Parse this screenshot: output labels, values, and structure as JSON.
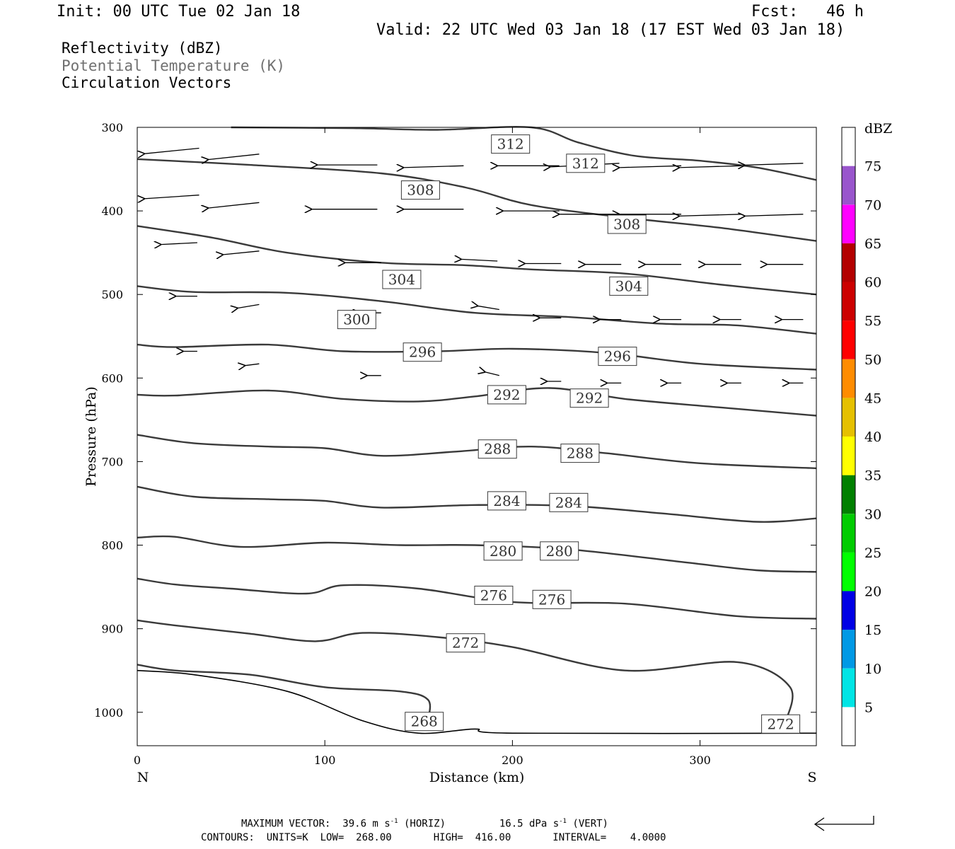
{
  "header": {
    "init": "Init: 00 UTC Tue 02 Jan 18",
    "fcst": "Fcst:   46 h",
    "valid": "Valid: 22 UTC Wed 03 Jan 18 (17 EST Wed 03 Jan 18)"
  },
  "legend_fields": [
    {
      "label": "Reflectivity (dBZ)",
      "color": "#000000"
    },
    {
      "label": "Potential Temperature (K)",
      "color": "#707070"
    },
    {
      "label": "Circulation Vectors",
      "color": "#000000"
    }
  ],
  "footer": {
    "vector_line1_prefix": "MAXIMUM VECTOR:  39.6 m s",
    "vector_line1_sup1": "-1",
    "vector_line1_mid": " (HORIZ)         16.5 dPa s",
    "vector_line1_sup2": "-1",
    "vector_line1_suffix": " (VERT)",
    "contours_line": "CONTOURS:  UNITS=K  LOW=  268.00       HIGH=  416.00       INTERVAL=    4.0000"
  },
  "chart_data": {
    "type": "cross-section",
    "xlabel": "Distance (km)",
    "ylabel": "Pressure (hPa)",
    "x_ticks": [
      0,
      100,
      200,
      300
    ],
    "y_ticks": [
      300,
      400,
      500,
      600,
      700,
      800,
      900,
      1000
    ],
    "xlim": [
      0,
      362
    ],
    "ylim": [
      300,
      1040
    ],
    "x_end_labels": {
      "left": "N",
      "right": "S"
    },
    "colorbar": {
      "title": "dBZ",
      "ticks": [
        5,
        10,
        15,
        20,
        25,
        30,
        35,
        40,
        45,
        50,
        55,
        60,
        65,
        70,
        75
      ],
      "bins": [
        {
          "from": 0,
          "to": 5,
          "color": "#ffffff"
        },
        {
          "from": 5,
          "to": 10,
          "color": "#00e5e5"
        },
        {
          "from": 10,
          "to": 15,
          "color": "#0099e5"
        },
        {
          "from": 15,
          "to": 20,
          "color": "#0000e5"
        },
        {
          "from": 20,
          "to": 25,
          "color": "#00ff00"
        },
        {
          "from": 25,
          "to": 30,
          "color": "#00cc00"
        },
        {
          "from": 30,
          "to": 35,
          "color": "#008000"
        },
        {
          "from": 35,
          "to": 40,
          "color": "#ffff00"
        },
        {
          "from": 40,
          "to": 45,
          "color": "#e5c000"
        },
        {
          "from": 45,
          "to": 50,
          "color": "#ff8c00"
        },
        {
          "from": 50,
          "to": 55,
          "color": "#ff0000"
        },
        {
          "from": 55,
          "to": 60,
          "color": "#cc0000"
        },
        {
          "from": 60,
          "to": 65,
          "color": "#b30000"
        },
        {
          "from": 65,
          "to": 70,
          "color": "#ff00ff"
        },
        {
          "from": 70,
          "to": 75,
          "color": "#9955cc"
        },
        {
          "from": 75,
          "to": 80,
          "color": "#ffffff"
        }
      ]
    },
    "contours": [
      {
        "value": 312,
        "points": [
          [
            50,
            300
          ],
          [
            115,
            301
          ],
          [
            160,
            303
          ],
          [
            210,
            300
          ],
          [
            235,
            318
          ],
          [
            265,
            334
          ],
          [
            300,
            340
          ],
          [
            330,
            348
          ],
          [
            362,
            363
          ]
        ]
      },
      {
        "value": 308,
        "points": [
          [
            0,
            338
          ],
          [
            60,
            345
          ],
          [
            130,
            355
          ],
          [
            175,
            372
          ],
          [
            210,
            393
          ],
          [
            260,
            408
          ],
          [
            310,
            420
          ],
          [
            362,
            436
          ]
        ]
      },
      {
        "value": 304,
        "points": [
          [
            0,
            418
          ],
          [
            40,
            432
          ],
          [
            80,
            450
          ],
          [
            130,
            462
          ],
          [
            175,
            465
          ],
          [
            210,
            470
          ],
          [
            260,
            475
          ],
          [
            310,
            488
          ],
          [
            362,
            500
          ]
        ]
      },
      {
        "value": 300,
        "points": [
          [
            0,
            490
          ],
          [
            30,
            497
          ],
          [
            80,
            498
          ],
          [
            130,
            508
          ],
          [
            180,
            522
          ],
          [
            230,
            527
          ],
          [
            280,
            535
          ],
          [
            320,
            537
          ],
          [
            362,
            547
          ]
        ]
      },
      {
        "value": 296,
        "points": [
          [
            0,
            560
          ],
          [
            20,
            563
          ],
          [
            70,
            560
          ],
          [
            110,
            568
          ],
          [
            160,
            568
          ],
          [
            200,
            565
          ],
          [
            250,
            570
          ],
          [
            300,
            583
          ],
          [
            362,
            590
          ]
        ]
      },
      {
        "value": 292,
        "points": [
          [
            0,
            620
          ],
          [
            20,
            621
          ],
          [
            70,
            615
          ],
          [
            110,
            625
          ],
          [
            150,
            628
          ],
          [
            180,
            622
          ],
          [
            220,
            612
          ],
          [
            260,
            625
          ],
          [
            310,
            635
          ],
          [
            362,
            645
          ]
        ]
      },
      {
        "value": 288,
        "points": [
          [
            0,
            668
          ],
          [
            30,
            678
          ],
          [
            70,
            682
          ],
          [
            100,
            684
          ],
          [
            130,
            693
          ],
          [
            170,
            688
          ],
          [
            210,
            682
          ],
          [
            250,
            690
          ],
          [
            300,
            702
          ],
          [
            362,
            708
          ]
        ]
      },
      {
        "value": 284,
        "points": [
          [
            0,
            730
          ],
          [
            30,
            742
          ],
          [
            70,
            745
          ],
          [
            100,
            747
          ],
          [
            130,
            755
          ],
          [
            180,
            752
          ],
          [
            230,
            753
          ],
          [
            280,
            762
          ],
          [
            330,
            772
          ],
          [
            362,
            768
          ]
        ]
      },
      {
        "value": 280,
        "points": [
          [
            0,
            791
          ],
          [
            20,
            790
          ],
          [
            55,
            802
          ],
          [
            100,
            797
          ],
          [
            140,
            800
          ],
          [
            180,
            800
          ],
          [
            230,
            805
          ],
          [
            290,
            820
          ],
          [
            330,
            830
          ],
          [
            362,
            832
          ]
        ]
      },
      {
        "value": 276,
        "points": [
          [
            0,
            840
          ],
          [
            20,
            847
          ],
          [
            50,
            852
          ],
          [
            90,
            858
          ],
          [
            110,
            848
          ],
          [
            150,
            852
          ],
          [
            200,
            868
          ],
          [
            260,
            870
          ],
          [
            320,
            885
          ],
          [
            362,
            888
          ]
        ]
      },
      {
        "value": 272,
        "points": [
          [
            0,
            890
          ],
          [
            20,
            896
          ],
          [
            60,
            906
          ],
          [
            95,
            915
          ],
          [
            120,
            905
          ],
          [
            160,
            910
          ],
          [
            200,
            922
          ],
          [
            260,
            950
          ],
          [
            320,
            940
          ],
          [
            348,
            970
          ],
          [
            345,
            1015
          ]
        ]
      },
      {
        "value": 268,
        "points": [
          [
            0,
            943
          ],
          [
            20,
            950
          ],
          [
            60,
            955
          ],
          [
            100,
            970
          ],
          [
            140,
            975
          ],
          [
            155,
            985
          ],
          [
            155,
            1010
          ]
        ]
      }
    ],
    "contour_labels": [
      {
        "value": "312",
        "x": 199,
        "p": 320
      },
      {
        "value": "312",
        "x": 239,
        "p": 343
      },
      {
        "value": "308",
        "x": 151,
        "p": 375
      },
      {
        "value": "308",
        "x": 261,
        "p": 416
      },
      {
        "value": "304",
        "x": 141,
        "p": 482
      },
      {
        "value": "304",
        "x": 262,
        "p": 490
      },
      {
        "value": "300",
        "x": 117,
        "p": 530
      },
      {
        "value": "296",
        "x": 152,
        "p": 569
      },
      {
        "value": "296",
        "x": 256,
        "p": 574
      },
      {
        "value": "292",
        "x": 197,
        "p": 620
      },
      {
        "value": "292",
        "x": 241,
        "p": 624
      },
      {
        "value": "288",
        "x": 192,
        "p": 685
      },
      {
        "value": "288",
        "x": 236,
        "p": 690
      },
      {
        "value": "284",
        "x": 197,
        "p": 747
      },
      {
        "value": "284",
        "x": 230,
        "p": 749
      },
      {
        "value": "280",
        "x": 195,
        "p": 807
      },
      {
        "value": "280",
        "x": 225,
        "p": 807
      },
      {
        "value": "276",
        "x": 190,
        "p": 860
      },
      {
        "value": "276",
        "x": 221,
        "p": 865
      },
      {
        "value": "272",
        "x": 175,
        "p": 917
      },
      {
        "value": "268",
        "x": 153,
        "p": 1011
      },
      {
        "value": "272",
        "x": 343,
        "p": 1014
      }
    ],
    "surface": [
      [
        0,
        950
      ],
      [
        30,
        955
      ],
      [
        80,
        975
      ],
      [
        120,
        1010
      ],
      [
        150,
        1025
      ],
      [
        180,
        1020
      ],
      [
        200,
        1025
      ],
      [
        362,
        1025
      ]
    ],
    "vectors": [
      {
        "x": 33,
        "p": 325,
        "u": -30,
        "v": 3
      },
      {
        "x": 65,
        "p": 332,
        "u": -28,
        "v": 3
      },
      {
        "x": 128,
        "p": 345,
        "u": -33,
        "v": 0
      },
      {
        "x": 174,
        "p": 346,
        "u": -33,
        "v": 1
      },
      {
        "x": 225,
        "p": 346,
        "u": -34,
        "v": 0
      },
      {
        "x": 257,
        "p": 343,
        "u": -38,
        "v": 2
      },
      {
        "x": 290,
        "p": 346,
        "u": -34,
        "v": 1
      },
      {
        "x": 322,
        "p": 346,
        "u": -34,
        "v": 1
      },
      {
        "x": 355,
        "p": 343,
        "u": -32,
        "v": 1
      },
      {
        "x": 33,
        "p": 381,
        "u": -30,
        "v": 2
      },
      {
        "x": 65,
        "p": 390,
        "u": -28,
        "v": 3
      },
      {
        "x": 128,
        "p": 398,
        "u": -36,
        "v": 0
      },
      {
        "x": 174,
        "p": 398,
        "u": -33,
        "v": 0
      },
      {
        "x": 225,
        "p": 400,
        "u": -31,
        "v": 0
      },
      {
        "x": 257,
        "p": 404,
        "u": -33,
        "v": 0
      },
      {
        "x": 290,
        "p": 404,
        "u": -34,
        "v": 0
      },
      {
        "x": 322,
        "p": 404,
        "u": -34,
        "v": 1
      },
      {
        "x": 355,
        "p": 404,
        "u": -32,
        "v": 1
      },
      {
        "x": 32,
        "p": 438,
        "u": -20,
        "v": 1
      },
      {
        "x": 65,
        "p": 448,
        "u": -20,
        "v": 2
      },
      {
        "x": 130,
        "p": 462,
        "u": -20,
        "v": 0
      },
      {
        "x": 192,
        "p": 460,
        "u": -20,
        "v": -1
      },
      {
        "x": 226,
        "p": 463,
        "u": -20,
        "v": 0
      },
      {
        "x": 258,
        "p": 464,
        "u": -20,
        "v": 0
      },
      {
        "x": 290,
        "p": 464,
        "u": -20,
        "v": 0
      },
      {
        "x": 322,
        "p": 464,
        "u": -20,
        "v": 0
      },
      {
        "x": 355,
        "p": 464,
        "u": -20,
        "v": 0
      },
      {
        "x": 32,
        "p": 502,
        "u": -12,
        "v": 0
      },
      {
        "x": 65,
        "p": 512,
        "u": -12,
        "v": 2
      },
      {
        "x": 130,
        "p": 522,
        "u": -12,
        "v": 0
      },
      {
        "x": 193,
        "p": 518,
        "u": -12,
        "v": -2
      },
      {
        "x": 226,
        "p": 528,
        "u": -12,
        "v": 0
      },
      {
        "x": 258,
        "p": 530,
        "u": -12,
        "v": 0
      },
      {
        "x": 290,
        "p": 530,
        "u": -12,
        "v": 0
      },
      {
        "x": 322,
        "p": 530,
        "u": -12,
        "v": 0
      },
      {
        "x": 355,
        "p": 530,
        "u": -12,
        "v": 0
      },
      {
        "x": 32,
        "p": 568,
        "u": -8,
        "v": 0
      },
      {
        "x": 65,
        "p": 583,
        "u": -8,
        "v": 1
      },
      {
        "x": 130,
        "p": 597,
        "u": -8,
        "v": 0
      },
      {
        "x": 193,
        "p": 597,
        "u": -8,
        "v": -2
      },
      {
        "x": 226,
        "p": 604,
        "u": -8,
        "v": 0
      },
      {
        "x": 258,
        "p": 606,
        "u": -8,
        "v": 0
      },
      {
        "x": 290,
        "p": 606,
        "u": -8,
        "v": 0
      },
      {
        "x": 322,
        "p": 606,
        "u": -8,
        "v": 0
      },
      {
        "x": 355,
        "p": 606,
        "u": -8,
        "v": 0
      }
    ]
  }
}
